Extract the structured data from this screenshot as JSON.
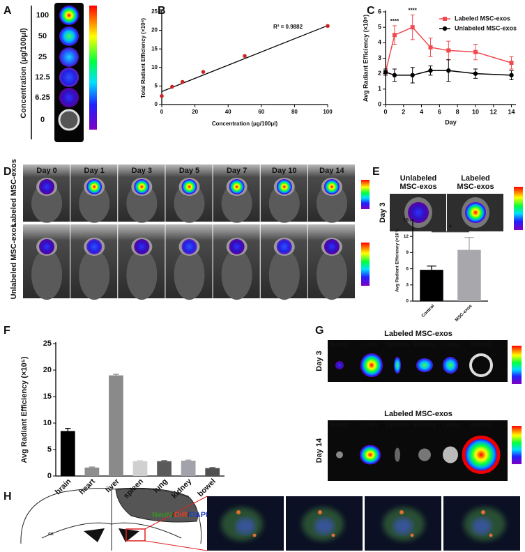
{
  "panel_labels": [
    "A",
    "B",
    "C",
    "D",
    "E",
    "F",
    "G",
    "H"
  ],
  "panel_a": {
    "concentrations": [
      "100",
      "50",
      "25",
      "12.5",
      "6.25",
      "0"
    ],
    "axis_label": "Concentration (μg/100μl)"
  },
  "panel_d": {
    "days": [
      "Day 0",
      "Day 1",
      "Day 3",
      "Day 5",
      "Day 7",
      "Day 10",
      "Day 14"
    ],
    "rows": [
      "Labeled MSC-exos",
      "Unlabeled MSC-exos"
    ]
  },
  "panel_e": {
    "columns": [
      [
        "Unlabeled",
        "MSC-exos"
      ],
      [
        "Labeled",
        "MSC-exos"
      ]
    ],
    "row": "Day 3"
  },
  "panel_g": {
    "blocks": [
      {
        "title": "Labeled MSC-exos",
        "day": "Day 3",
        "organs": [
          "Heart",
          "Liver",
          "Spleen",
          "Kidney",
          "Lung",
          "Bowel"
        ]
      },
      {
        "title": "Labeled MSC-exos",
        "day": "Day 14",
        "organs": [
          "Heart",
          "Liver",
          "Spleen",
          "Kidney",
          "Lung",
          "Bowel"
        ]
      }
    ]
  },
  "panel_h": {
    "stain": [
      "NeuN",
      "/",
      "DiR",
      "/",
      "DAPI"
    ],
    "region": "cc"
  },
  "chart_data": [
    {
      "type": "scatter",
      "x": [
        0,
        6.25,
        12.5,
        25,
        50,
        100
      ],
      "values": [
        2.3,
        4.8,
        6.1,
        8.8,
        13.1,
        21.2
      ],
      "color": "#cc2222",
      "fit": {
        "x": [
          0,
          100
        ],
        "values": [
          3.5,
          21.3
        ]
      },
      "annotation": "R² = 0.9882",
      "xlabel": "Concentration (μg/100μl)",
      "ylabel": "Total Radiant Efficiency (×10⁸)",
      "xlim": [
        0,
        100
      ],
      "xticks": [
        0,
        20,
        40,
        60,
        80,
        100
      ],
      "ylim": [
        0,
        25
      ],
      "yticks": [
        0,
        5,
        10,
        15,
        20,
        25
      ]
    },
    {
      "type": "line",
      "x": [
        0,
        1,
        3,
        5,
        7,
        10,
        14
      ],
      "series": [
        {
          "name": "Labeled MSC-exos",
          "color": "#ee4a4f",
          "marker": "square",
          "values": [
            2.1,
            4.5,
            5.0,
            3.7,
            3.5,
            3.4,
            2.7
          ],
          "errors": [
            0.2,
            0.6,
            0.8,
            0.6,
            0.6,
            0.5,
            0.4
          ]
        },
        {
          "name": "Unlabeled MSC-exos",
          "color": "#000000",
          "marker": "circle",
          "values": [
            2.1,
            1.9,
            1.9,
            2.2,
            2.2,
            2.0,
            1.9
          ],
          "errors": [
            0.2,
            0.4,
            0.5,
            0.3,
            0.7,
            0.3,
            0.3
          ]
        }
      ],
      "annotations": [
        {
          "text": "****",
          "x": 1
        },
        {
          "text": "****",
          "x": 3
        }
      ],
      "legend": "upper right",
      "xlabel": "Day",
      "ylabel": "Avg Radiant Efficiency (×10⁸)",
      "xlim": [
        0,
        14.5
      ],
      "xticks": [
        0,
        2,
        4,
        6,
        8,
        10,
        12,
        14
      ],
      "ylim": [
        0,
        6
      ],
      "yticks": [
        0,
        1,
        2,
        3,
        4,
        5,
        6
      ]
    },
    {
      "type": "bar",
      "categories": [
        "Control",
        "MSC-exos"
      ],
      "values": [
        5.8,
        9.5
      ],
      "errors": [
        0.7,
        2.3
      ],
      "colors": [
        "#000000",
        "#a7a7ac"
      ],
      "annotation": "*",
      "ylabel": "Avg Radiant Efficiency (×10⁷)",
      "ylim": [
        0,
        15
      ],
      "yticks": [
        0,
        3,
        6,
        9,
        12,
        15
      ]
    },
    {
      "type": "bar",
      "categories": [
        "brain",
        "heart",
        "liver",
        "spleen",
        "lung",
        "kidney",
        "bowel"
      ],
      "values": [
        8.5,
        1.6,
        19,
        2.8,
        2.8,
        2.9,
        1.5
      ],
      "errors": [
        0.5,
        0.1,
        0.2,
        0.1,
        0.1,
        0.1,
        0.1
      ],
      "colors": [
        "#000000",
        "#8e8e8e",
        "#8a8a8a",
        "#d0d0d0",
        "#5a5a5a",
        "#a2a2aa",
        "#505050"
      ],
      "ylabel": "Avg Radiant Efficiency (×10⁵)",
      "ylim": [
        0,
        25
      ],
      "yticks": [
        0,
        5,
        10,
        15,
        20,
        25
      ]
    }
  ]
}
